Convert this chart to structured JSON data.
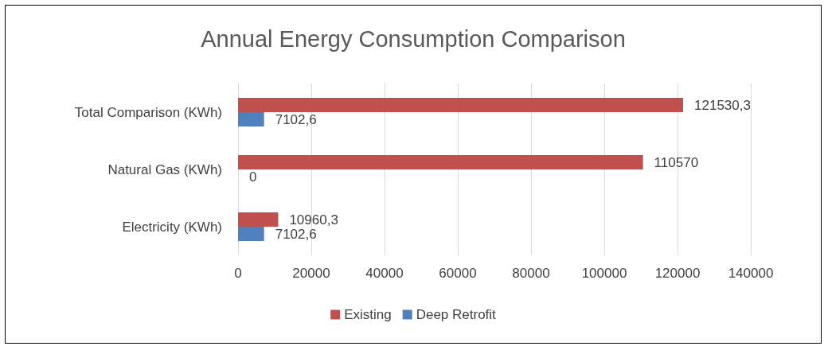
{
  "chart_data": {
    "type": "bar",
    "orientation": "horizontal",
    "title": "Annual Energy Consumption Comparison",
    "categories": [
      "Total Comparison (KWh)",
      "Natural Gas (KWh)",
      "Electricity (KWh)"
    ],
    "series": [
      {
        "name": "Existing",
        "color": "#c0504d",
        "values": [
          121530.3,
          110570,
          10960.3
        ],
        "value_labels": [
          "121530,3",
          "110570",
          "10960,3"
        ]
      },
      {
        "name": "Deep Retrofit",
        "color": "#4f81bd",
        "values": [
          7102.6,
          0,
          7102.6
        ],
        "value_labels": [
          "7102,6",
          "0",
          "7102,6"
        ]
      }
    ],
    "xlim": [
      0,
      140000
    ],
    "xticks": [
      0,
      20000,
      40000,
      60000,
      80000,
      100000,
      120000,
      140000
    ],
    "grid": "x",
    "legend": "bottom"
  }
}
